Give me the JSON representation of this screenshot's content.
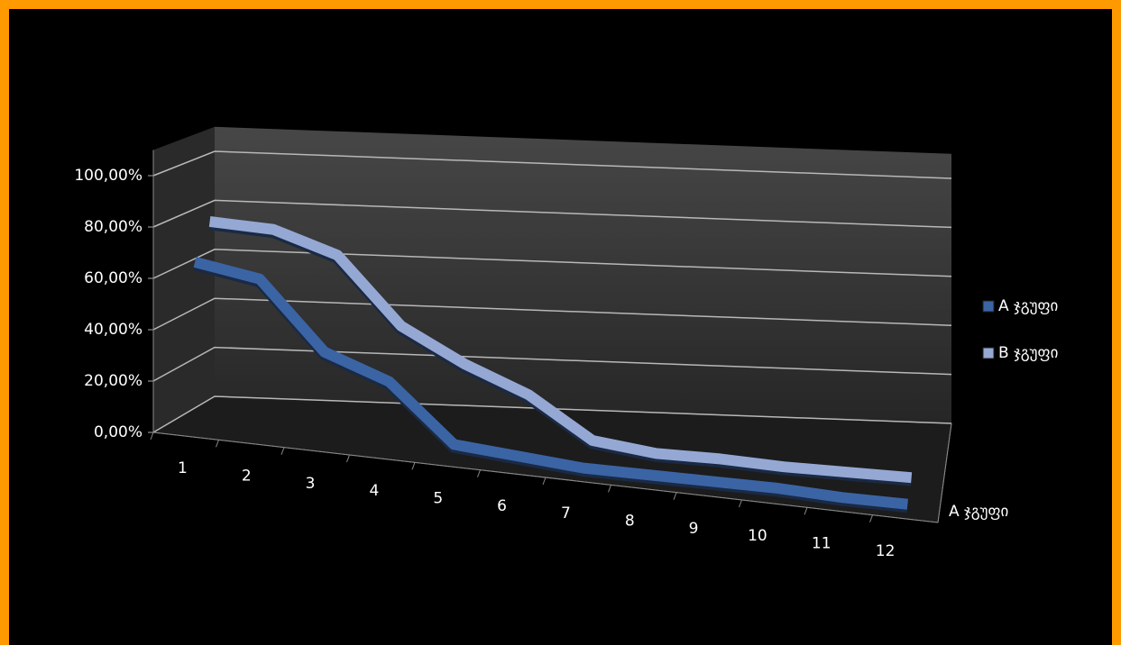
{
  "chart_data": {
    "type": "line3d",
    "categories": [
      "1",
      "2",
      "3",
      "4",
      "5",
      "6",
      "7",
      "8",
      "9",
      "10",
      "11",
      "12"
    ],
    "series": [
      {
        "name": "A ჯგუფი",
        "color": "#3b64a5",
        "values": [
          66,
          62,
          36,
          27,
          5,
          3,
          1,
          1,
          1,
          1,
          0,
          0
        ]
      },
      {
        "name": "B ჯგუფი",
        "color": "#95a8d4",
        "values": [
          79,
          78,
          70,
          44,
          31,
          21,
          5,
          2,
          2,
          1,
          1,
          1
        ]
      }
    ],
    "depth_categories": [
      "A ჯგუფი"
    ],
    "ylim": [
      0,
      100
    ],
    "yticks": [
      {
        "value": 0,
        "label": "0,00%"
      },
      {
        "value": 20,
        "label": "20,00%"
      },
      {
        "value": 40,
        "label": "40,00%"
      },
      {
        "value": 60,
        "label": "60,00%"
      },
      {
        "value": 80,
        "label": "80,00%"
      },
      {
        "value": 100,
        "label": "100,00%"
      }
    ],
    "grid": true,
    "legend": "right"
  }
}
